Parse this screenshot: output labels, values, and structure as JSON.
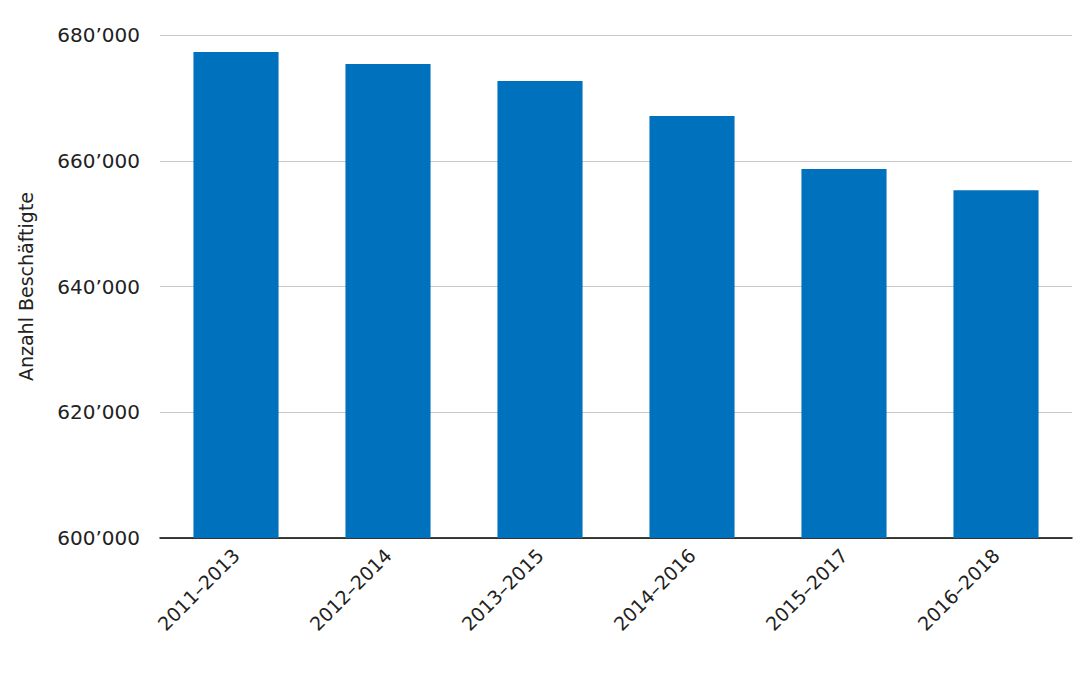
{
  "chart_data": {
    "type": "bar",
    "y_label": "Anzahl Beschäftigte",
    "categories": [
      "2011–2013",
      "2012–2014",
      "2013–2015",
      "2014–2016",
      "2015–2017",
      "2016–2018"
    ],
    "values": [
      677300,
      675400,
      672700,
      667100,
      658700,
      655300
    ],
    "color": "#0072bd",
    "ylim": [
      600000,
      680000
    ],
    "yticks": [
      {
        "value": 600000,
        "label": "600’000"
      },
      {
        "value": 620000,
        "label": "620’000"
      },
      {
        "value": 640000,
        "label": "640’000"
      },
      {
        "value": 660000,
        "label": "660’000"
      },
      {
        "value": 680000,
        "label": "680’000"
      }
    ],
    "grid": true
  }
}
